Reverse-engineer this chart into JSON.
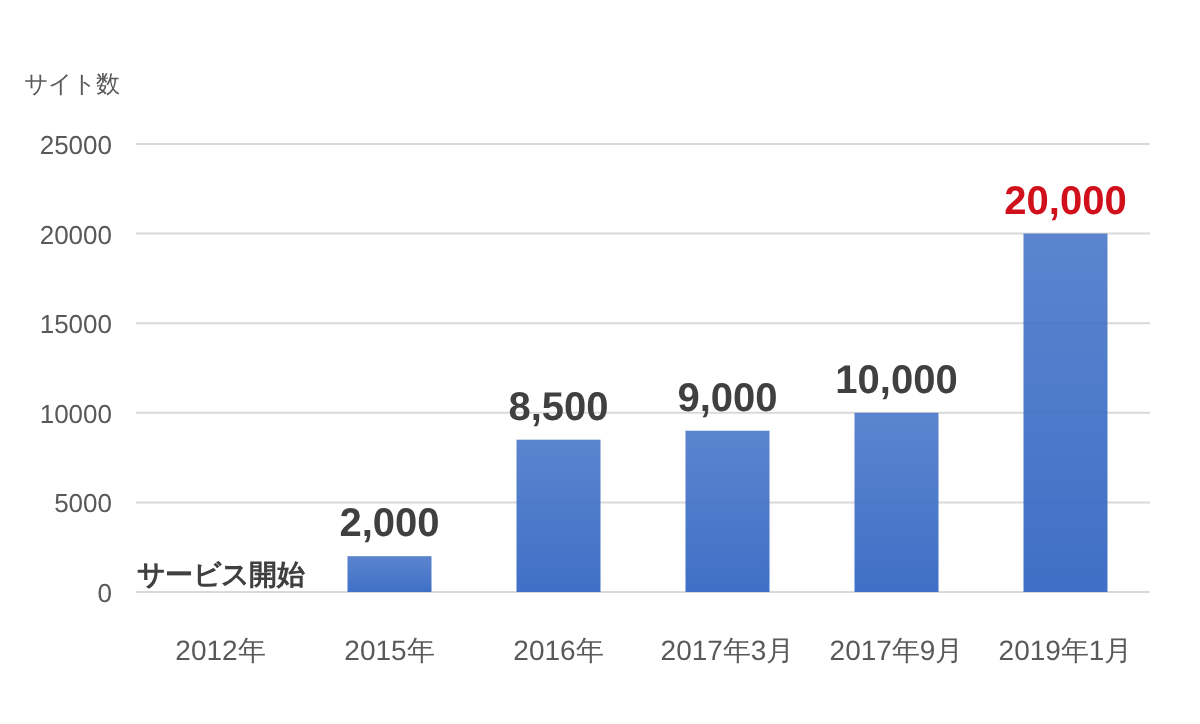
{
  "chart_data": {
    "type": "bar",
    "ylabel": "サイト数",
    "categories": [
      "2012年",
      "2015年",
      "2016年",
      "2017年3月",
      "2017年9月",
      "2019年1月"
    ],
    "values": [
      0,
      2000,
      8500,
      9000,
      10000,
      20000
    ],
    "value_labels": [
      "サービス開始",
      "2,000",
      "8,500",
      "9,000",
      "10,000",
      "20,000"
    ],
    "color": "#3f6fc6",
    "ylim": [
      0,
      25000
    ],
    "yticks": [
      0,
      5000,
      10000,
      15000,
      20000,
      25000
    ],
    "grid": "y"
  }
}
